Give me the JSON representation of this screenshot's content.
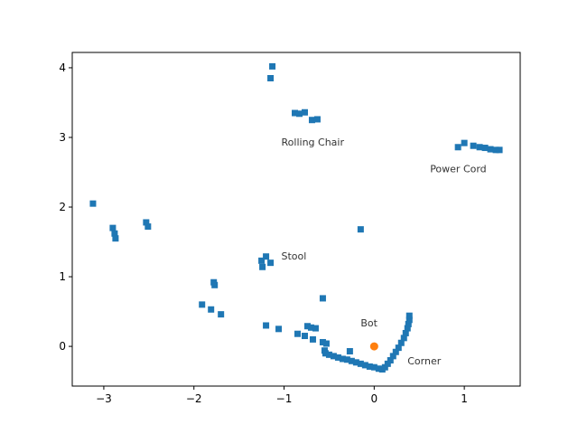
{
  "chart_data": {
    "type": "scatter",
    "xlim": [
      -3.35,
      1.62
    ],
    "ylim": [
      -0.57,
      4.22
    ],
    "grid": false,
    "legend": "none",
    "xticks": [
      {
        "value": -3,
        "label": "−3"
      },
      {
        "value": -2,
        "label": "−2"
      },
      {
        "value": -1,
        "label": "−1"
      },
      {
        "value": 0,
        "label": "0"
      },
      {
        "value": 1,
        "label": "1"
      }
    ],
    "yticks": [
      {
        "value": 0,
        "label": "0"
      },
      {
        "value": 1,
        "label": "1"
      },
      {
        "value": 2,
        "label": "2"
      },
      {
        "value": 3,
        "label": "3"
      },
      {
        "value": 4,
        "label": "4"
      }
    ],
    "series": [
      {
        "marker": "square",
        "color": "#1f77b4",
        "points": [
          [
            -1.13,
            4.02
          ],
          [
            -1.15,
            3.85
          ],
          [
            -0.88,
            3.35
          ],
          [
            -0.83,
            3.34
          ],
          [
            -0.77,
            3.36
          ],
          [
            -0.69,
            3.25
          ],
          [
            -0.63,
            3.26
          ],
          [
            0.93,
            2.86
          ],
          [
            1.0,
            2.92
          ],
          [
            1.1,
            2.88
          ],
          [
            1.17,
            2.86
          ],
          [
            1.23,
            2.85
          ],
          [
            1.29,
            2.83
          ],
          [
            1.35,
            2.82
          ],
          [
            1.39,
            2.82
          ],
          [
            -3.12,
            2.05
          ],
          [
            -2.9,
            1.7
          ],
          [
            -2.88,
            1.62
          ],
          [
            -2.87,
            1.55
          ],
          [
            -2.53,
            1.78
          ],
          [
            -2.51,
            1.72
          ],
          [
            -0.15,
            1.68
          ],
          [
            -1.2,
            1.29
          ],
          [
            -1.25,
            1.23
          ],
          [
            -1.24,
            1.14
          ],
          [
            -1.15,
            1.2
          ],
          [
            -1.78,
            0.92
          ],
          [
            -1.77,
            0.88
          ],
          [
            -1.91,
            0.6
          ],
          [
            -1.81,
            0.53
          ],
          [
            -1.7,
            0.46
          ],
          [
            -0.57,
            0.69
          ],
          [
            -1.2,
            0.3
          ],
          [
            -1.06,
            0.25
          ],
          [
            -0.74,
            0.29
          ],
          [
            -0.7,
            0.27
          ],
          [
            -0.65,
            0.26
          ],
          [
            -0.85,
            0.18
          ],
          [
            -0.77,
            0.15
          ],
          [
            -0.68,
            0.1
          ],
          [
            -0.57,
            0.06
          ],
          [
            -0.53,
            0.04
          ],
          [
            -0.27,
            -0.07
          ],
          [
            -0.55,
            -0.06
          ],
          [
            -0.54,
            -0.1
          ],
          [
            -0.5,
            -0.12
          ],
          [
            -0.45,
            -0.14
          ],
          [
            -0.4,
            -0.16
          ],
          [
            -0.35,
            -0.18
          ],
          [
            -0.3,
            -0.19
          ],
          [
            -0.25,
            -0.21
          ],
          [
            -0.2,
            -0.23
          ],
          [
            -0.15,
            -0.25
          ],
          [
            -0.1,
            -0.27
          ],
          [
            -0.05,
            -0.29
          ],
          [
            0.0,
            -0.3
          ],
          [
            0.05,
            -0.32
          ],
          [
            0.09,
            -0.33
          ],
          [
            0.12,
            -0.3
          ],
          [
            0.15,
            -0.25
          ],
          [
            0.18,
            -0.2
          ],
          [
            0.21,
            -0.14
          ],
          [
            0.24,
            -0.08
          ],
          [
            0.27,
            -0.02
          ],
          [
            0.3,
            0.05
          ],
          [
            0.33,
            0.12
          ],
          [
            0.35,
            0.19
          ],
          [
            0.37,
            0.26
          ],
          [
            0.38,
            0.32
          ],
          [
            0.39,
            0.38
          ],
          [
            0.39,
            0.44
          ]
        ]
      },
      {
        "marker": "circle",
        "color": "#ff7f0e",
        "points": [
          [
            0.0,
            0.0
          ]
        ]
      }
    ],
    "annotations": [
      {
        "text": "Rolling Chair",
        "x": -1.03,
        "y": 2.88
      },
      {
        "text": "Power Cord",
        "x": 0.62,
        "y": 2.5
      },
      {
        "text": "Stool",
        "x": -1.03,
        "y": 1.25
      },
      {
        "text": "Bot",
        "x": -0.15,
        "y": 0.29
      },
      {
        "text": "Corner",
        "x": 0.37,
        "y": -0.26
      }
    ]
  }
}
